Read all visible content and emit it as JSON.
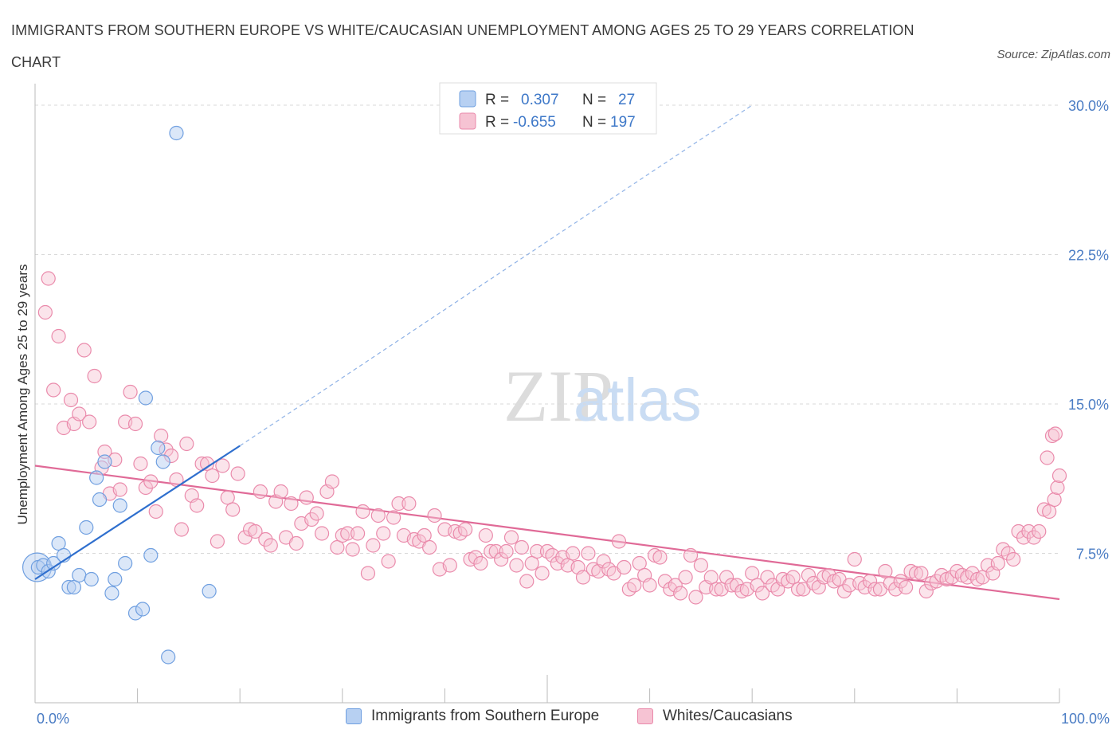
{
  "title": "IMMIGRANTS FROM SOUTHERN EUROPE VS WHITE/CAUCASIAN UNEMPLOYMENT AMONG AGES 25 TO 29 YEARS CORRELATION CHART",
  "source": "Source: ZipAtlas.com",
  "watermark": {
    "zip": "ZIP",
    "atlas": "atlas"
  },
  "colors": {
    "blue_fill": "#b7d0f2",
    "blue_stroke": "#6f9fe0",
    "blue_line": "#2f6fce",
    "pink_fill": "#f6c3d3",
    "pink_stroke": "#ea8aab",
    "pink_line": "#e06a97",
    "tick_text": "#4a7cc4",
    "grid": "#d9d9d9"
  },
  "legend": {
    "rows": [
      {
        "r_label": "R =",
        "r_value": "0.307",
        "n_label": "N =",
        "n_value": "27"
      },
      {
        "r_label": "R =",
        "r_value": "-0.655",
        "n_label": "N =",
        "n_value": "197"
      }
    ]
  },
  "bottom_legend": {
    "series1": "Immigrants from Southern Europe",
    "series2": "Whites/Caucasians"
  },
  "chart_data": {
    "type": "scatter",
    "xlabel": "",
    "ylabel": "Unemployment Among Ages 25 to 29 years",
    "xlim": [
      0,
      100
    ],
    "ylim": [
      0,
      30
    ],
    "x_tick_labels": [
      "0.0%",
      "100.0%"
    ],
    "y_ticks": [
      7.5,
      15.0,
      22.5,
      30.0
    ],
    "y_tick_labels": [
      "7.5%",
      "15.0%",
      "22.5%",
      "30.0%"
    ],
    "grid": true,
    "legend_position": "top-center",
    "series": [
      {
        "name": "Immigrants from Southern Europe",
        "r": 0.307,
        "n": 27,
        "trend": {
          "x": [
            0,
            20
          ],
          "y": [
            6.2,
            12.9
          ],
          "dashed_extension": {
            "x": [
              20,
              70
            ],
            "y": [
              12.9,
              30.0
            ]
          }
        },
        "points": [
          [
            0.3,
            6.8
          ],
          [
            0.8,
            6.9
          ],
          [
            1.3,
            6.6
          ],
          [
            1.8,
            7.0
          ],
          [
            2.3,
            8.0
          ],
          [
            2.8,
            7.4
          ],
          [
            3.3,
            5.8
          ],
          [
            3.8,
            5.8
          ],
          [
            4.3,
            6.4
          ],
          [
            5.0,
            8.8
          ],
          [
            5.5,
            6.2
          ],
          [
            6.0,
            11.3
          ],
          [
            6.3,
            10.2
          ],
          [
            6.8,
            12.1
          ],
          [
            7.5,
            5.5
          ],
          [
            7.8,
            6.2
          ],
          [
            8.3,
            9.9
          ],
          [
            8.8,
            7.0
          ],
          [
            9.8,
            4.5
          ],
          [
            10.5,
            4.7
          ],
          [
            10.8,
            15.3
          ],
          [
            11.3,
            7.4
          ],
          [
            12.0,
            12.8
          ],
          [
            12.5,
            12.1
          ],
          [
            13.0,
            2.3
          ],
          [
            13.8,
            28.6
          ],
          [
            17.0,
            5.6
          ]
        ],
        "big_point": [
          0.2,
          6.8
        ]
      },
      {
        "name": "Whites/Caucasians",
        "r": -0.655,
        "n": 197,
        "trend": {
          "x": [
            0,
            100
          ],
          "y": [
            11.9,
            5.2
          ]
        },
        "points": [
          [
            1.3,
            21.3
          ],
          [
            1.0,
            19.6
          ],
          [
            1.8,
            15.7
          ],
          [
            2.3,
            18.4
          ],
          [
            2.8,
            13.8
          ],
          [
            3.5,
            15.2
          ],
          [
            3.8,
            14.0
          ],
          [
            4.3,
            14.5
          ],
          [
            4.8,
            17.7
          ],
          [
            5.3,
            14.1
          ],
          [
            5.8,
            16.4
          ],
          [
            6.5,
            11.8
          ],
          [
            6.8,
            12.6
          ],
          [
            7.3,
            10.5
          ],
          [
            7.8,
            12.2
          ],
          [
            8.3,
            10.7
          ],
          [
            8.8,
            14.1
          ],
          [
            9.3,
            15.6
          ],
          [
            9.8,
            14.0
          ],
          [
            10.3,
            12.0
          ],
          [
            10.8,
            10.8
          ],
          [
            11.3,
            11.1
          ],
          [
            11.8,
            9.6
          ],
          [
            12.3,
            13.4
          ],
          [
            12.8,
            12.7
          ],
          [
            13.3,
            12.4
          ],
          [
            13.8,
            11.2
          ],
          [
            14.3,
            8.7
          ],
          [
            14.8,
            13.0
          ],
          [
            15.3,
            10.4
          ],
          [
            15.8,
            9.9
          ],
          [
            16.3,
            12.0
          ],
          [
            16.8,
            12.0
          ],
          [
            17.3,
            11.4
          ],
          [
            17.8,
            8.1
          ],
          [
            18.3,
            11.9
          ],
          [
            18.8,
            10.3
          ],
          [
            19.3,
            9.7
          ],
          [
            19.8,
            11.5
          ],
          [
            20.5,
            8.3
          ],
          [
            21.0,
            8.7
          ],
          [
            21.5,
            8.6
          ],
          [
            22.0,
            10.6
          ],
          [
            22.5,
            8.2
          ],
          [
            23.0,
            7.9
          ],
          [
            23.5,
            10.1
          ],
          [
            24.0,
            10.6
          ],
          [
            24.5,
            8.3
          ],
          [
            25.0,
            10.0
          ],
          [
            25.5,
            8.0
          ],
          [
            26.0,
            9.0
          ],
          [
            26.5,
            10.3
          ],
          [
            27.0,
            9.2
          ],
          [
            27.5,
            9.5
          ],
          [
            28.0,
            8.5
          ],
          [
            28.5,
            10.6
          ],
          [
            29.0,
            11.1
          ],
          [
            29.5,
            7.8
          ],
          [
            30.0,
            8.4
          ],
          [
            30.5,
            8.5
          ],
          [
            31.0,
            7.7
          ],
          [
            31.5,
            8.5
          ],
          [
            32.0,
            9.6
          ],
          [
            32.5,
            6.5
          ],
          [
            33.0,
            7.9
          ],
          [
            33.5,
            9.4
          ],
          [
            34.0,
            8.5
          ],
          [
            34.5,
            7.1
          ],
          [
            35.0,
            9.3
          ],
          [
            35.5,
            10.0
          ],
          [
            36.0,
            8.4
          ],
          [
            36.5,
            10.0
          ],
          [
            37.0,
            8.2
          ],
          [
            37.5,
            8.1
          ],
          [
            38.0,
            8.4
          ],
          [
            38.5,
            7.8
          ],
          [
            39.0,
            9.4
          ],
          [
            39.5,
            6.7
          ],
          [
            40.0,
            8.7
          ],
          [
            40.5,
            6.9
          ],
          [
            41.0,
            8.6
          ],
          [
            41.5,
            8.5
          ],
          [
            42.0,
            8.7
          ],
          [
            42.5,
            7.2
          ],
          [
            43.0,
            7.3
          ],
          [
            43.5,
            7.0
          ],
          [
            44.0,
            8.4
          ],
          [
            44.5,
            7.6
          ],
          [
            45.0,
            7.6
          ],
          [
            45.5,
            7.2
          ],
          [
            46.0,
            7.6
          ],
          [
            46.5,
            8.3
          ],
          [
            47.0,
            6.9
          ],
          [
            47.5,
            7.8
          ],
          [
            48.0,
            6.1
          ],
          [
            48.5,
            7.0
          ],
          [
            49.0,
            7.6
          ],
          [
            49.5,
            6.5
          ],
          [
            50.0,
            7.6
          ],
          [
            50.5,
            7.4
          ],
          [
            51.0,
            7.0
          ],
          [
            51.5,
            7.3
          ],
          [
            52.0,
            6.9
          ],
          [
            52.5,
            7.5
          ],
          [
            53.0,
            6.8
          ],
          [
            53.5,
            6.3
          ],
          [
            54.0,
            7.5
          ],
          [
            54.5,
            6.7
          ],
          [
            55.0,
            6.6
          ],
          [
            55.5,
            7.1
          ],
          [
            56.0,
            6.7
          ],
          [
            56.5,
            6.5
          ],
          [
            57.0,
            8.1
          ],
          [
            57.5,
            6.8
          ],
          [
            58.0,
            5.7
          ],
          [
            58.5,
            5.9
          ],
          [
            59.0,
            7.0
          ],
          [
            59.5,
            6.4
          ],
          [
            60.0,
            5.9
          ],
          [
            60.5,
            7.4
          ],
          [
            61.0,
            7.3
          ],
          [
            61.5,
            6.1
          ],
          [
            62.0,
            5.7
          ],
          [
            62.5,
            5.9
          ],
          [
            63.0,
            5.5
          ],
          [
            63.5,
            6.3
          ],
          [
            64.0,
            7.4
          ],
          [
            64.5,
            5.3
          ],
          [
            65.0,
            6.9
          ],
          [
            65.5,
            5.8
          ],
          [
            66.0,
            6.3
          ],
          [
            66.5,
            5.7
          ],
          [
            67.0,
            5.7
          ],
          [
            67.5,
            6.3
          ],
          [
            68.0,
            5.9
          ],
          [
            68.5,
            5.9
          ],
          [
            69.0,
            5.6
          ],
          [
            69.5,
            5.7
          ],
          [
            70.0,
            6.5
          ],
          [
            70.5,
            5.9
          ],
          [
            71.0,
            5.5
          ],
          [
            71.5,
            6.3
          ],
          [
            72.0,
            5.9
          ],
          [
            72.5,
            5.7
          ],
          [
            73.0,
            6.2
          ],
          [
            73.5,
            6.1
          ],
          [
            74.0,
            6.3
          ],
          [
            74.5,
            5.7
          ],
          [
            75.0,
            5.7
          ],
          [
            75.5,
            6.4
          ],
          [
            76.0,
            6.0
          ],
          [
            76.5,
            5.8
          ],
          [
            77.0,
            6.3
          ],
          [
            77.5,
            6.4
          ],
          [
            78.0,
            6.1
          ],
          [
            78.5,
            6.2
          ],
          [
            79.0,
            5.6
          ],
          [
            79.5,
            5.9
          ],
          [
            80.0,
            7.2
          ],
          [
            80.5,
            6.0
          ],
          [
            81.0,
            5.8
          ],
          [
            81.5,
            6.1
          ],
          [
            82.0,
            5.7
          ],
          [
            82.5,
            5.7
          ],
          [
            83.0,
            6.6
          ],
          [
            83.5,
            6.0
          ],
          [
            84.0,
            5.7
          ],
          [
            84.5,
            6.1
          ],
          [
            85.0,
            5.8
          ],
          [
            85.5,
            6.6
          ],
          [
            86.0,
            6.5
          ],
          [
            86.5,
            6.5
          ],
          [
            87.0,
            5.6
          ],
          [
            87.5,
            6.0
          ],
          [
            88.0,
            6.1
          ],
          [
            88.5,
            6.4
          ],
          [
            89.0,
            6.2
          ],
          [
            89.5,
            6.3
          ],
          [
            90.0,
            6.6
          ],
          [
            90.5,
            6.4
          ],
          [
            91.0,
            6.3
          ],
          [
            91.5,
            6.5
          ],
          [
            92.0,
            6.2
          ],
          [
            92.5,
            6.3
          ],
          [
            93.0,
            6.9
          ],
          [
            93.5,
            6.5
          ],
          [
            94.0,
            7.0
          ],
          [
            94.5,
            7.7
          ],
          [
            95.0,
            7.5
          ],
          [
            95.5,
            7.2
          ],
          [
            96.0,
            8.6
          ],
          [
            96.5,
            8.3
          ],
          [
            97.0,
            8.6
          ],
          [
            97.5,
            8.3
          ],
          [
            98.0,
            8.6
          ],
          [
            98.5,
            9.7
          ],
          [
            99.0,
            9.6
          ],
          [
            99.5,
            10.2
          ],
          [
            99.8,
            10.8
          ],
          [
            100.0,
            11.4
          ],
          [
            98.8,
            12.3
          ],
          [
            99.3,
            13.4
          ],
          [
            99.6,
            13.5
          ]
        ]
      }
    ]
  }
}
